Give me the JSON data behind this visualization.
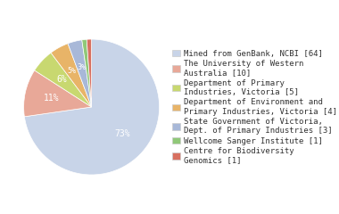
{
  "labels": [
    "Mined from GenBank, NCBI [64]",
    "The University of Western\nAustralia [10]",
    "Department of Primary\nIndustries, Victoria [5]",
    "Department of Environment and\nPrimary Industries, Victoria [4]",
    "State Government of Victoria,\nDept. of Primary Industries [3]",
    "Wellcome Sanger Institute [1]",
    "Centre for Biodiversity\nGenomics [1]"
  ],
  "values": [
    64,
    10,
    5,
    4,
    3,
    1,
    1
  ],
  "colors": [
    "#c8d4e8",
    "#e8a898",
    "#c8d870",
    "#e8b468",
    "#a8b8d8",
    "#90c878",
    "#d87060"
  ],
  "startangle": 90,
  "background_color": "#ffffff",
  "text_color": "#333333",
  "legend_fontsize": 6.5,
  "pct_fontsize": 7
}
